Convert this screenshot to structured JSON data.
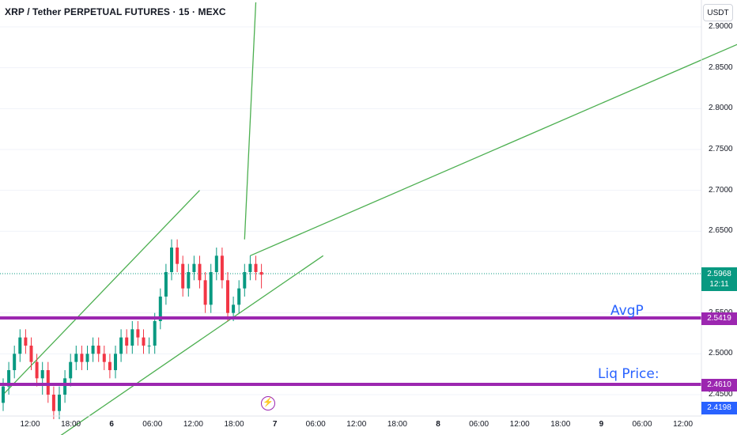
{
  "header": {
    "title": "XRP / Tether PERPETUAL FUTURES · 15 · MEXC"
  },
  "price_axis": {
    "currency": "USDT",
    "ticks": [
      "2.9000",
      "2.8500",
      "2.8000",
      "2.7500",
      "2.7000",
      "2.6500",
      "2.5500",
      "2.5000",
      "2.4500"
    ]
  },
  "time_axis": {
    "labels": [
      {
        "text": "12:00",
        "bold": false
      },
      {
        "text": "18:00",
        "bold": false
      },
      {
        "text": "6",
        "bold": true
      },
      {
        "text": "06:00",
        "bold": false
      },
      {
        "text": "12:00",
        "bold": false
      },
      {
        "text": "18:00",
        "bold": false
      },
      {
        "text": "7",
        "bold": true
      },
      {
        "text": "06:00",
        "bold": false
      },
      {
        "text": "12:00",
        "bold": false
      },
      {
        "text": "18:00",
        "bold": false
      },
      {
        "text": "8",
        "bold": true
      },
      {
        "text": "06:00",
        "bold": false
      },
      {
        "text": "12:00",
        "bold": false
      },
      {
        "text": "18:00",
        "bold": false
      },
      {
        "text": "9",
        "bold": true
      },
      {
        "text": "06:00",
        "bold": false
      },
      {
        "text": "12:00",
        "bold": false
      }
    ]
  },
  "current_price": {
    "value": "2.5968",
    "countdown": "12:11"
  },
  "levels": [
    {
      "label": "AvgP",
      "price": "2.5419"
    },
    {
      "label": "Liq Price:",
      "price": "2.4610"
    }
  ],
  "low_marker": {
    "price": "2.4198"
  },
  "colors": {
    "up": "#089981",
    "down": "#f23645",
    "levels": "#9c27b0",
    "trendlines": "#4caf50",
    "annotation": "#2962ff"
  },
  "chart_data": {
    "type": "candlestick",
    "title": "XRP / Tether PERPETUAL FUTURES · 15 · MEXC",
    "y_axis": {
      "label": "USDT",
      "range": [
        2.41,
        2.93
      ]
    },
    "interval": "15m",
    "candles_ohlc_approx": [
      [
        2.44,
        2.47,
        2.43,
        2.46
      ],
      [
        2.46,
        2.49,
        2.45,
        2.48
      ],
      [
        2.48,
        2.51,
        2.47,
        2.5
      ],
      [
        2.5,
        2.53,
        2.49,
        2.52
      ],
      [
        2.52,
        2.53,
        2.5,
        2.51
      ],
      [
        2.51,
        2.52,
        2.48,
        2.49
      ],
      [
        2.49,
        2.5,
        2.46,
        2.47
      ],
      [
        2.47,
        2.49,
        2.45,
        2.48
      ],
      [
        2.48,
        2.49,
        2.44,
        2.45
      ],
      [
        2.45,
        2.46,
        2.42,
        2.43
      ],
      [
        2.43,
        2.46,
        2.42,
        2.45
      ],
      [
        2.45,
        2.48,
        2.44,
        2.47
      ],
      [
        2.47,
        2.5,
        2.46,
        2.49
      ],
      [
        2.49,
        2.51,
        2.48,
        2.5
      ],
      [
        2.5,
        2.51,
        2.48,
        2.49
      ],
      [
        2.49,
        2.51,
        2.48,
        2.5
      ],
      [
        2.5,
        2.52,
        2.49,
        2.51
      ],
      [
        2.51,
        2.52,
        2.49,
        2.5
      ],
      [
        2.5,
        2.51,
        2.48,
        2.49
      ],
      [
        2.49,
        2.5,
        2.47,
        2.48
      ],
      [
        2.48,
        2.51,
        2.47,
        2.5
      ],
      [
        2.5,
        2.53,
        2.49,
        2.52
      ],
      [
        2.52,
        2.53,
        2.5,
        2.51
      ],
      [
        2.51,
        2.54,
        2.5,
        2.53
      ],
      [
        2.53,
        2.54,
        2.51,
        2.52
      ],
      [
        2.52,
        2.53,
        2.5,
        2.51
      ],
      [
        2.51,
        2.52,
        2.5,
        2.51
      ],
      [
        2.51,
        2.55,
        2.5,
        2.54
      ],
      [
        2.54,
        2.58,
        2.53,
        2.57
      ],
      [
        2.57,
        2.61,
        2.56,
        2.6
      ],
      [
        2.6,
        2.64,
        2.59,
        2.63
      ],
      [
        2.63,
        2.64,
        2.6,
        2.61
      ],
      [
        2.61,
        2.62,
        2.57,
        2.58
      ],
      [
        2.58,
        2.61,
        2.57,
        2.6
      ],
      [
        2.6,
        2.62,
        2.59,
        2.61
      ],
      [
        2.61,
        2.62,
        2.58,
        2.59
      ],
      [
        2.59,
        2.6,
        2.55,
        2.56
      ],
      [
        2.56,
        2.61,
        2.55,
        2.6
      ],
      [
        2.6,
        2.63,
        2.59,
        2.62
      ],
      [
        2.62,
        2.63,
        2.58,
        2.59
      ],
      [
        2.59,
        2.6,
        2.54,
        2.55
      ],
      [
        2.55,
        2.57,
        2.54,
        2.56
      ],
      [
        2.56,
        2.59,
        2.55,
        2.58
      ],
      [
        2.58,
        2.61,
        2.57,
        2.6
      ],
      [
        2.6,
        2.62,
        2.59,
        2.61
      ],
      [
        2.61,
        2.62,
        2.59,
        2.6
      ],
      [
        2.6,
        2.61,
        2.58,
        2.5968
      ]
    ],
    "horizontal_levels": [
      {
        "name": "AvgP",
        "y": 2.5419
      },
      {
        "name": "Liq Price:",
        "y": 2.461
      }
    ],
    "trendlines": [
      {
        "from": [
          0,
          2.45
        ],
        "to": [
          35,
          2.7
        ]
      },
      {
        "from": [
          6,
          2.38
        ],
        "to": [
          57,
          2.62
        ]
      },
      {
        "from": [
          44,
          2.62
        ],
        "to": [
          148,
          2.93
        ]
      },
      {
        "from": [
          43,
          2.64
        ],
        "to": [
          45,
          2.93
        ]
      }
    ]
  }
}
